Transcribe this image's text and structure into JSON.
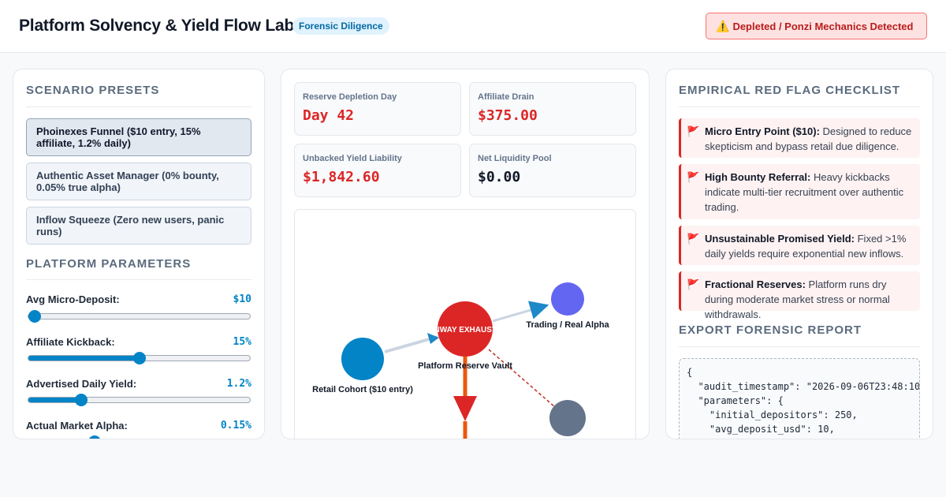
{
  "header": {
    "title": "Platform Solvency & Yield Flow Lab",
    "tag": "Forensic Diligence",
    "alert_icon": "warning-icon",
    "alert": "Depleted / Ponzi Mechanics Detected"
  },
  "sidebar": {
    "presets_title": "SCENARIO PRESETS",
    "presets": [
      {
        "label": "Phoinexes Funnel ($10 entry, 15% affiliate, 1.2% daily)",
        "active": true
      },
      {
        "label": "Authentic Asset Manager (0% bounty, 0.05% true alpha)",
        "active": false
      },
      {
        "label": "Inflow Squeeze (Zero new users, panic runs)",
        "active": false
      }
    ],
    "params_title": "PLATFORM PARAMETERS",
    "params": [
      {
        "label": "Avg Micro-Deposit:",
        "value": "$10",
        "fraction": 0.03
      },
      {
        "label": "Affiliate Kickback:",
        "value": "15%",
        "fraction": 0.5
      },
      {
        "label": "Advertised Daily Yield:",
        "value": "1.2%",
        "fraction": 0.24
      },
      {
        "label": "Actual Market Alpha:",
        "value": "0.15%",
        "fraction": 0.3
      }
    ]
  },
  "metrics": [
    {
      "label": "Reserve Depletion Day",
      "value": "Day 42",
      "alert": true
    },
    {
      "label": "Affiliate Drain",
      "value": "$375.00",
      "alert": true
    },
    {
      "label": "Unbacked Yield Liability",
      "value": "$1,842.60",
      "alert": true
    },
    {
      "label": "Net Liquidity Pool",
      "value": "$0.00",
      "alert": false
    }
  ],
  "flow_graph": {
    "nodes": {
      "retail": "Retail Cohort ($10 entry)",
      "vault": "Platform Reserve Vault",
      "vault_status": "RUNWAY EXHAUSTED",
      "trading": "Trading / Real Alpha"
    },
    "colors": {
      "retail": "#0284c7",
      "vault": "#dc2626",
      "trading": "#6366f1",
      "affiliate": "#64748b",
      "outflow": "#ea580c"
    }
  },
  "checklist": {
    "title": "EMPIRICAL RED FLAG CHECKLIST",
    "items": [
      {
        "icon": "red-flag-icon",
        "bold": "Micro Entry Point ($10):",
        "text": " Designed to reduce skepticism and bypass retail due diligence."
      },
      {
        "icon": "red-flag-icon",
        "bold": "High Bounty Referral:",
        "text": " Heavy kickbacks indicate multi-tier recruitment over authentic trading."
      },
      {
        "icon": "red-flag-icon",
        "bold": "Unsustainable Promised Yield:",
        "text": " Fixed >1% daily yields require exponential new inflows."
      },
      {
        "icon": "red-flag-icon",
        "bold": "Fractional Reserves:",
        "text": " Platform runs dry during moderate market stress or normal withdrawals."
      }
    ]
  },
  "export": {
    "title": "EXPORT FORENSIC REPORT",
    "report": "{\n  \"audit_timestamp\": \"2026-09-06T23:48:10\n  \"parameters\": {\n    \"initial_depositors\": 250,\n    \"avg_deposit_usd\": 10,"
  }
}
